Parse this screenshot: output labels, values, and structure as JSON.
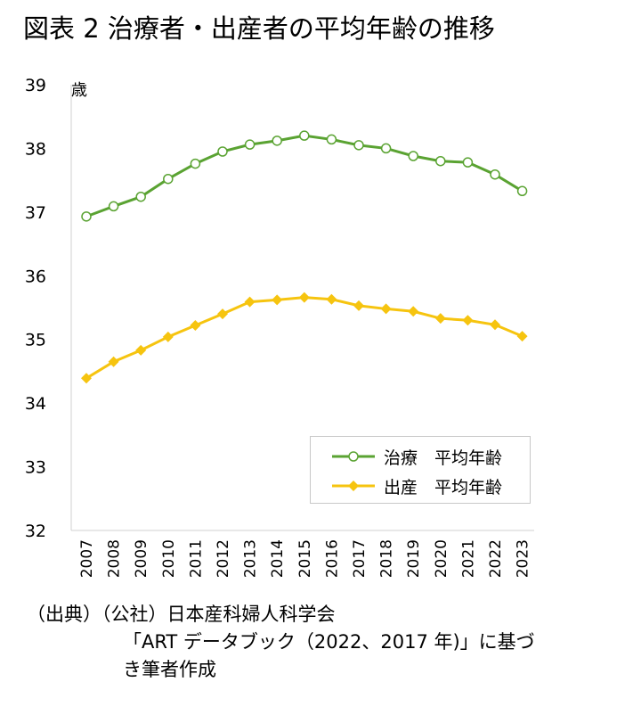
{
  "title": "図表 2 治療者・出産者の平均年齢の推移",
  "chart_data": {
    "type": "line",
    "ylabel": "歳",
    "ylim": [
      32,
      39
    ],
    "yticks": [
      32,
      33,
      34,
      35,
      36,
      37,
      38,
      39
    ],
    "grid": false,
    "legend_position": "bottom-right",
    "categories": [
      "2007",
      "2008",
      "2009",
      "2010",
      "2011",
      "2012",
      "2013",
      "2014",
      "2015",
      "2016",
      "2017",
      "2018",
      "2019",
      "2020",
      "2021",
      "2022",
      "2023"
    ],
    "series": [
      {
        "name": "治療　平均年齢",
        "color": "#5aa332",
        "marker": "circle-open",
        "values": [
          36.93,
          37.09,
          37.24,
          37.52,
          37.76,
          37.95,
          38.06,
          38.12,
          38.2,
          38.14,
          38.05,
          38.0,
          37.88,
          37.8,
          37.78,
          37.59,
          37.33
        ]
      },
      {
        "name": "出産　平均年齢",
        "color": "#f6c40f",
        "marker": "diamond-filled",
        "values": [
          34.39,
          34.65,
          34.83,
          35.04,
          35.22,
          35.4,
          35.59,
          35.62,
          35.66,
          35.63,
          35.53,
          35.48,
          35.44,
          35.33,
          35.3,
          35.23,
          35.05
        ]
      }
    ]
  },
  "source": {
    "line1": "（出典）（公社）日本産科婦人科学会",
    "line2": "「ART データブック（2022、2017 年)」に基づ",
    "line3": "き筆者作成"
  }
}
